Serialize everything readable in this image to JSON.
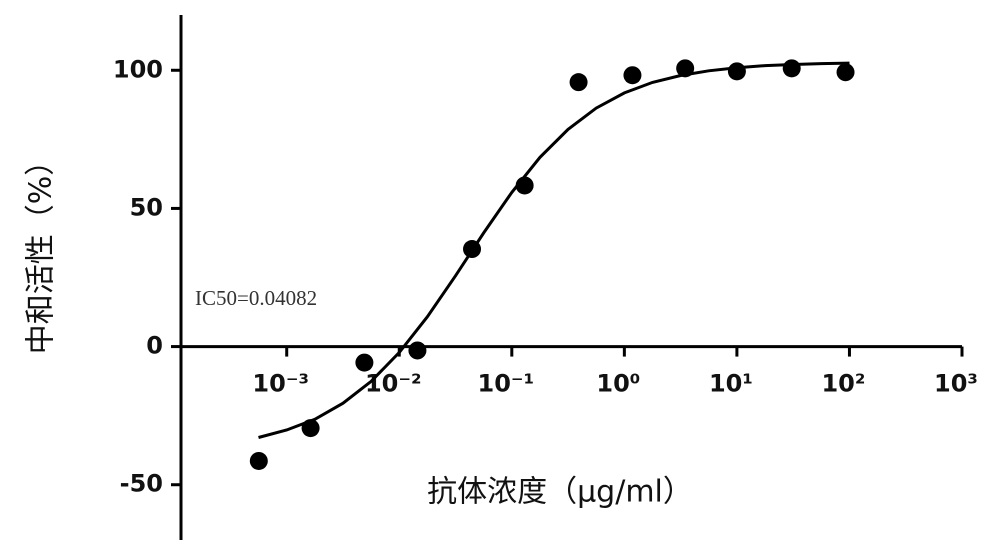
{
  "chart_data": {
    "type": "scatter",
    "y_label": "中和活性（%）",
    "x_label": "抗体浓度（μg/ml）",
    "annotation": "IC50=0.04082",
    "xscale": "log",
    "xlim": [
      0.000115,
      1000
    ],
    "ylim": [
      -70,
      120
    ],
    "xticks": [
      {
        "value": 0.001,
        "label": "10⁻³"
      },
      {
        "value": 0.01,
        "label": "10⁻²"
      },
      {
        "value": 0.1,
        "label": "10⁻¹"
      },
      {
        "value": 1,
        "label": "10⁰"
      },
      {
        "value": 10,
        "label": "10¹"
      },
      {
        "value": 100,
        "label": "10²"
      },
      {
        "value": 1000,
        "label": "10³"
      }
    ],
    "yticks": [
      -50,
      0,
      50,
      100
    ],
    "series": [
      {
        "style": "markers",
        "color": "#000000",
        "x": [
          0.000565,
          0.00163,
          0.0049,
          0.0145,
          0.0443,
          0.13,
          0.392,
          1.18,
          3.47,
          10,
          30.7,
          92.3
        ],
        "values": [
          -41.4,
          -29.5,
          -5.8,
          -1.4,
          35.3,
          58.3,
          95.7,
          98.2,
          100.7,
          99.6,
          100.7,
          99.3
        ]
      },
      {
        "style": "line",
        "color": "#000000",
        "x": [
          0.000562,
          0.001,
          0.00178,
          0.00316,
          0.00562,
          0.01,
          0.0178,
          0.0316,
          0.0562,
          0.1,
          0.178,
          0.316,
          0.562,
          1,
          1.78,
          3.16,
          5.62,
          10,
          17.8,
          31.6,
          56.2,
          100
        ],
        "values": [
          -32.9,
          -30.2,
          -26.3,
          -20.5,
          -12.6,
          -2.1,
          10.8,
          25.6,
          41.1,
          55.8,
          68.5,
          78.6,
          86.3,
          91.8,
          95.6,
          98.1,
          99.8,
          100.9,
          101.7,
          102.1,
          102.4,
          102.6
        ]
      }
    ]
  }
}
